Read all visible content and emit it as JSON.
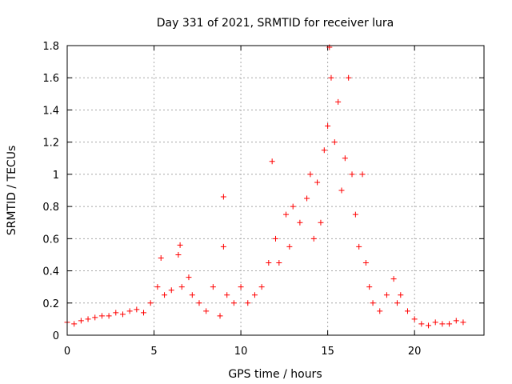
{
  "chart_data": {
    "type": "scatter",
    "title": "Day 331 of 2021, SRMTID for receiver lura",
    "xlabel": "GPS time / hours",
    "ylabel": "SRMTID / TECUs",
    "xlim": [
      0,
      24
    ],
    "ylim": [
      0,
      1.8
    ],
    "xticks": [
      0,
      5,
      10,
      15,
      20
    ],
    "xtick_labels": [
      "0",
      "5",
      "10",
      "15",
      "20"
    ],
    "yticks": [
      0,
      0.2,
      0.4,
      0.6,
      0.8,
      1,
      1.2,
      1.4,
      1.6,
      1.8
    ],
    "ytick_labels": [
      "0",
      "0.2",
      "0.4",
      "0.6",
      "0.8",
      "1",
      "1.2",
      "1.4",
      "1.6",
      "1.8"
    ],
    "grid": true,
    "marker": "+",
    "series_color": "#ff0000",
    "series": [
      {
        "name": "SRMTID",
        "x": [
          0.0,
          0.4,
          0.8,
          1.2,
          1.6,
          2.0,
          2.4,
          2.8,
          3.2,
          3.6,
          4.0,
          4.4,
          4.8,
          5.2,
          5.4,
          5.6,
          6.0,
          6.4,
          6.5,
          6.6,
          7.0,
          7.2,
          7.6,
          8.0,
          8.4,
          8.8,
          9.0,
          9.0,
          9.2,
          9.6,
          10.0,
          10.4,
          10.8,
          11.2,
          11.6,
          11.8,
          12.0,
          12.2,
          12.6,
          12.8,
          13.0,
          13.4,
          13.8,
          14.0,
          14.2,
          14.4,
          14.6,
          14.8,
          15.0,
          15.1,
          15.2,
          15.4,
          15.6,
          15.8,
          16.0,
          16.2,
          16.4,
          16.6,
          16.8,
          17.0,
          17.2,
          17.4,
          17.6,
          18.0,
          18.4,
          18.8,
          19.0,
          19.2,
          19.6,
          20.0,
          20.4,
          20.8,
          21.2,
          21.6,
          22.0,
          22.4,
          22.8
        ],
        "y": [
          0.08,
          0.07,
          0.09,
          0.1,
          0.11,
          0.12,
          0.12,
          0.14,
          0.13,
          0.15,
          0.16,
          0.14,
          0.2,
          0.3,
          0.48,
          0.25,
          0.28,
          0.5,
          0.56,
          0.3,
          0.36,
          0.25,
          0.2,
          0.15,
          0.3,
          0.12,
          0.86,
          0.55,
          0.25,
          0.2,
          0.3,
          0.2,
          0.25,
          0.3,
          0.45,
          1.08,
          0.6,
          0.45,
          0.75,
          0.55,
          0.8,
          0.7,
          0.85,
          1.0,
          0.6,
          0.95,
          0.7,
          1.15,
          1.3,
          1.79,
          1.6,
          1.2,
          1.45,
          0.9,
          1.1,
          1.6,
          1.0,
          0.75,
          0.55,
          1.0,
          0.45,
          0.3,
          0.2,
          0.15,
          0.25,
          0.35,
          0.2,
          0.25,
          0.15,
          0.1,
          0.07,
          0.06,
          0.08,
          0.07,
          0.07,
          0.09,
          0.08
        ]
      }
    ]
  }
}
